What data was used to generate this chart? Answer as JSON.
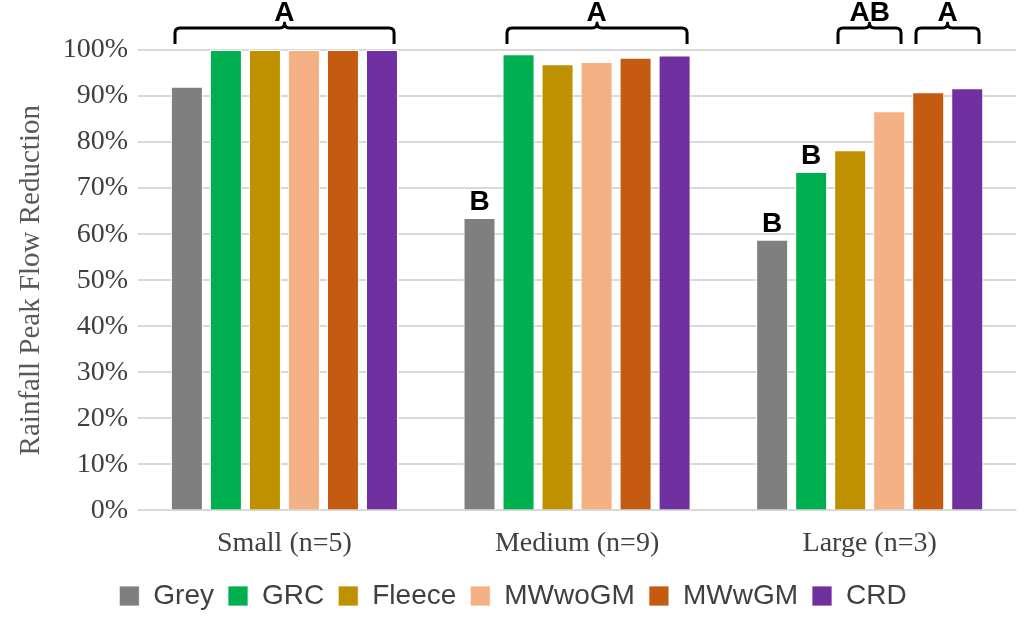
{
  "chart_data": {
    "type": "bar",
    "ylabel": "Rainfall Peak Flow Reduction",
    "categories": [
      "Small (n=5)",
      "Medium (n=9)",
      "Large (n=3)"
    ],
    "series": [
      {
        "name": "Grey",
        "color": "#7f7f7f",
        "values": [
          92,
          63.5,
          58.8
        ]
      },
      {
        "name": "GRC",
        "color": "#00b050",
        "values": [
          100,
          99.1,
          73.5
        ]
      },
      {
        "name": "Fleece",
        "color": "#bf9000",
        "values": [
          100,
          96.9,
          78.2
        ]
      },
      {
        "name": "MWwoGM",
        "color": "#f4b183",
        "values": [
          100,
          97.4,
          86.7
        ]
      },
      {
        "name": "MWwGM",
        "color": "#c55a11",
        "values": [
          100,
          98.3,
          90.8
        ]
      },
      {
        "name": "CRD",
        "color": "#7030a0",
        "values": [
          100,
          98.8,
          91.7
        ]
      }
    ],
    "ylim": [
      0,
      100
    ],
    "yticks": [
      {
        "value": 0,
        "label": "0%"
      },
      {
        "value": 10,
        "label": "10%"
      },
      {
        "value": 20,
        "label": "20%"
      },
      {
        "value": 30,
        "label": "30%"
      },
      {
        "value": 40,
        "label": "40%"
      },
      {
        "value": 50,
        "label": "50%"
      },
      {
        "value": 60,
        "label": "60%"
      },
      {
        "value": 70,
        "label": "70%"
      },
      {
        "value": 80,
        "label": "80%"
      },
      {
        "value": 90,
        "label": "90%"
      },
      {
        "value": 100,
        "label": "100%"
      }
    ],
    "grid": "y",
    "legend": "bottom",
    "annotations": [
      "A",
      "A",
      "B",
      "B",
      "B",
      "AB",
      "A"
    ]
  }
}
